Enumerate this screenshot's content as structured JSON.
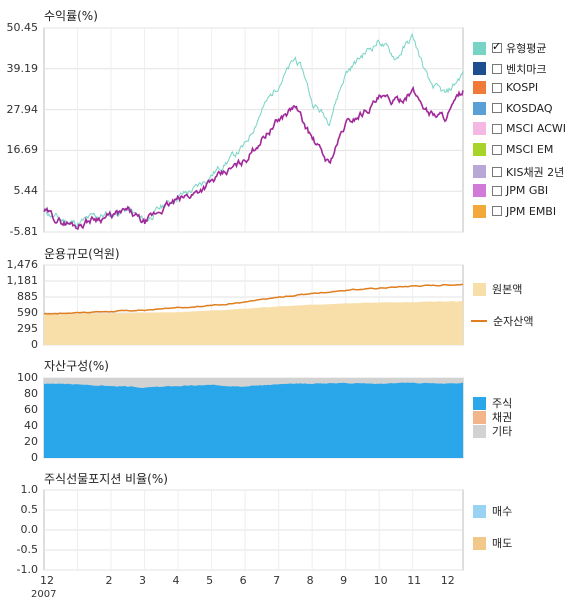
{
  "chart_data": [
    {
      "type": "line",
      "title": "수익률(%)",
      "ylim": [
        -5.81,
        50.45
      ],
      "yticks": [
        "50.45",
        "39.19",
        "27.94",
        "16.69",
        "5.44",
        "-5.81"
      ],
      "series": [
        {
          "name": "유형평균",
          "color": "#77d4c4",
          "checked": true,
          "x": [
            0,
            0.5,
            1,
            1.5,
            2,
            2.5,
            3,
            3.5,
            4,
            4.5,
            5,
            5.5,
            6,
            6.5,
            7,
            7.5,
            7.75,
            8,
            8.5,
            9,
            9.5,
            10,
            10.5,
            11,
            11.5,
            12,
            12.5
          ],
          "values": [
            0,
            -2.5,
            -3.5,
            -1.5,
            -1.0,
            0.5,
            -3.0,
            1.0,
            4.0,
            6.0,
            10.0,
            14.0,
            18.0,
            28.0,
            35.0,
            42.0,
            38.0,
            30.0,
            25.0,
            38.0,
            43.0,
            47.0,
            42.0,
            48.0,
            35.0,
            32.0,
            38.0
          ]
        },
        {
          "name": "벤치마크",
          "color": "#1d4e8f",
          "checked": false
        },
        {
          "name": "KOSPI",
          "color": "#f07a3a",
          "checked": false
        },
        {
          "name": "KOSDAQ",
          "color": "#5a9fd6",
          "checked": false
        },
        {
          "name": "MSCI ACWI",
          "color": "#f4b8e2",
          "checked": false
        },
        {
          "name": "MSCI EM",
          "color": "#a8d42a",
          "checked": false
        },
        {
          "name": "KIS채권 2년",
          "color": "#b8a8d8",
          "checked": false
        },
        {
          "name": "JPM GBI",
          "color": "#d27ad8",
          "checked": false
        },
        {
          "name": "JPM EMBI",
          "color": "#f2a93a",
          "checked": false
        }
      ],
      "fund_line": {
        "color": "#a0289a",
        "x": [
          0,
          0.5,
          1,
          1.5,
          2,
          2.5,
          3,
          3.5,
          4,
          4.5,
          5,
          5.5,
          6,
          6.5,
          7,
          7.5,
          7.75,
          8,
          8.5,
          9,
          9.5,
          10,
          10.5,
          11,
          11.5,
          12,
          12.5
        ],
        "values": [
          0,
          -3.0,
          -4.0,
          -2.0,
          -1.5,
          0.0,
          -3.5,
          0.5,
          3.0,
          5.0,
          8.0,
          11.0,
          14.0,
          20.0,
          25.0,
          29.0,
          24.0,
          20.0,
          13.0,
          24.0,
          27.0,
          31.0,
          30.0,
          33.0,
          27.0,
          26.0,
          33.0
        ]
      }
    },
    {
      "type": "area",
      "title": "운용규모(억원)",
      "ylim": [
        0,
        1476
      ],
      "yticks": [
        "1,476",
        "1,181",
        "885",
        "590",
        "295",
        "0"
      ],
      "series": [
        {
          "name": "원본액",
          "color": "#f8dfaa",
          "x": [
            0,
            1,
            2,
            3,
            4,
            5,
            6,
            7,
            8,
            9,
            10,
            11,
            12,
            12.5
          ],
          "values": [
            560,
            575,
            585,
            595,
            610,
            635,
            670,
            710,
            740,
            765,
            785,
            790,
            805,
            810
          ]
        },
        {
          "name": "순자산액",
          "color": "#e07f22",
          "x": [
            0,
            1,
            2,
            3,
            4,
            5,
            6,
            7,
            8,
            9,
            10,
            11,
            12,
            12.5
          ],
          "values": [
            570,
            600,
            620,
            640,
            690,
            730,
            790,
            880,
            950,
            1010,
            1050,
            1090,
            1110,
            1120
          ]
        }
      ]
    },
    {
      "type": "area",
      "title": "자산구성(%)",
      "ylim": [
        0,
        100
      ],
      "yticks": [
        "100",
        "80",
        "60",
        "40",
        "20",
        "0"
      ],
      "series": [
        {
          "name": "주식",
          "color": "#2aa6ea",
          "x": [
            0,
            1,
            2,
            3,
            4,
            5,
            6,
            7,
            8,
            9,
            10,
            11,
            12,
            12.5
          ],
          "values": [
            93,
            92,
            90,
            88,
            90,
            91,
            90,
            92,
            93,
            94,
            93,
            94,
            93,
            94
          ]
        },
        {
          "name": "채권",
          "color": "#f4b58a",
          "values": []
        },
        {
          "name": "기타",
          "color": "#d2d2d2",
          "x": [
            0,
            1,
            2,
            3,
            4,
            5,
            6,
            7,
            8,
            9,
            10,
            11,
            12,
            12.5
          ],
          "values": [
            7,
            8,
            10,
            12,
            10,
            9,
            10,
            8,
            7,
            6,
            7,
            6,
            7,
            6
          ]
        }
      ]
    },
    {
      "type": "bar",
      "title": "주식선물포지션 비율(%)",
      "ylim": [
        -1.0,
        1.0
      ],
      "yticks": [
        "1.0",
        "0.5",
        "0.0",
        "-0.5",
        "-1.0"
      ],
      "series": [
        {
          "name": "매수",
          "color": "#9ad2f4",
          "values": []
        },
        {
          "name": "매도",
          "color": "#f2c88a",
          "values": []
        }
      ]
    }
  ],
  "x_axis": {
    "ticks": [
      "12",
      "2",
      "3",
      "4",
      "5",
      "6",
      "7",
      "8",
      "9",
      "10",
      "11",
      "12"
    ],
    "year_label": "2007",
    "range": [
      0,
      12.5
    ]
  }
}
